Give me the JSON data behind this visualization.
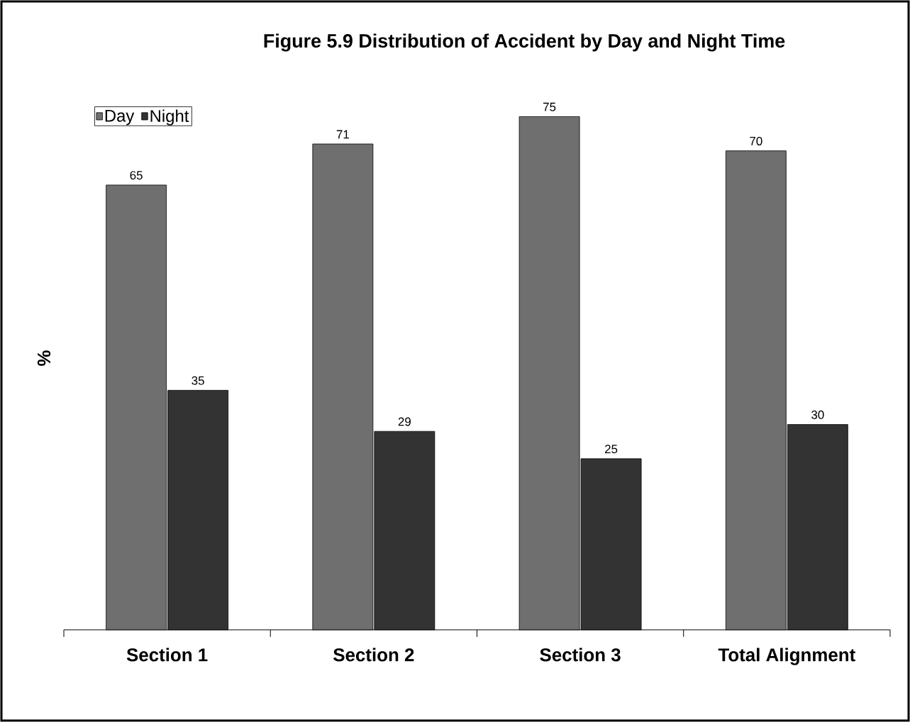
{
  "chart_data": {
    "type": "bar",
    "title": "Figure 5.9    Distribution of Accident by Day and Night Time",
    "ylabel": "%",
    "categories": [
      "Section 1",
      "Section 2",
      "Section 3",
      "Total Alignment"
    ],
    "series": [
      {
        "name": "Day",
        "color": "#6f6f6f",
        "values": [
          65,
          71,
          75,
          70
        ]
      },
      {
        "name": "Night",
        "color": "#333333",
        "values": [
          35,
          29,
          25,
          30
        ]
      }
    ],
    "data_labels": true,
    "legend": "top left"
  }
}
